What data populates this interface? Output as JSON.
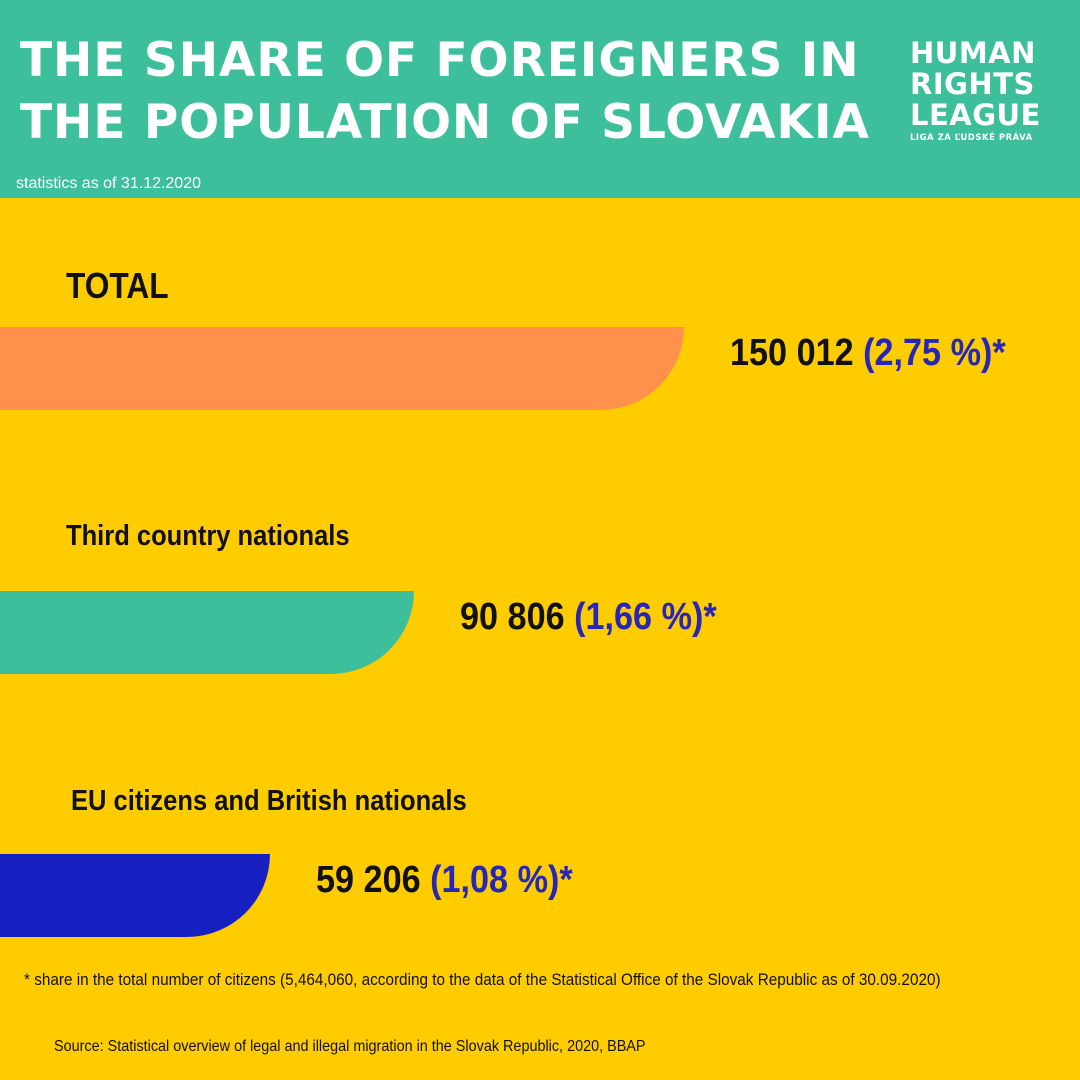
{
  "header": {
    "title_line1": "THE SHARE OF FOREIGNERS IN",
    "title_line2": "THE POPULATION OF SLOVAKIA",
    "subtitle": "statistics as of 31.12.2020",
    "background_color": "#3DBF9C"
  },
  "logo": {
    "line1": "HUMAN",
    "line2": "RIGHTS",
    "line3": "LEAGUE",
    "tagline": "LIGA ZA ĽUDSKÉ PRÁVA"
  },
  "chart_data": {
    "type": "bar",
    "orientation": "horizontal",
    "title": "THE SHARE OF FOREIGNERS IN THE POPULATION OF SLOVAKIA",
    "subtitle": "statistics as of 31.12.2020",
    "categories": [
      "TOTAL",
      "Third country nationals",
      "EU citizens and British nationals"
    ],
    "values": [
      150012,
      90806,
      59206
    ],
    "percentages": [
      2.75,
      1.66,
      1.08
    ],
    "value_labels": [
      "150 012",
      "90 806",
      "59 206"
    ],
    "percent_labels": [
      "(2,75 %)*",
      "(1,66 %)*",
      "(1,08 %)*"
    ],
    "colors": [
      "#FF914D",
      "#3DBF9C",
      "#1720C0"
    ],
    "grid": false,
    "legend": "none"
  },
  "footnote": "* share in the total number of citizens (5,464,060, according to the data of the Statistical Office of the Slovak Republic as of 30.09.2020)",
  "source": "Source: Statistical overview of legal and illegal migration in the Slovak Republic, 2020, BBAP",
  "colors": {
    "background": "#FFCC00",
    "text_dark": "#111111",
    "percent_accent": "#2626B8"
  }
}
